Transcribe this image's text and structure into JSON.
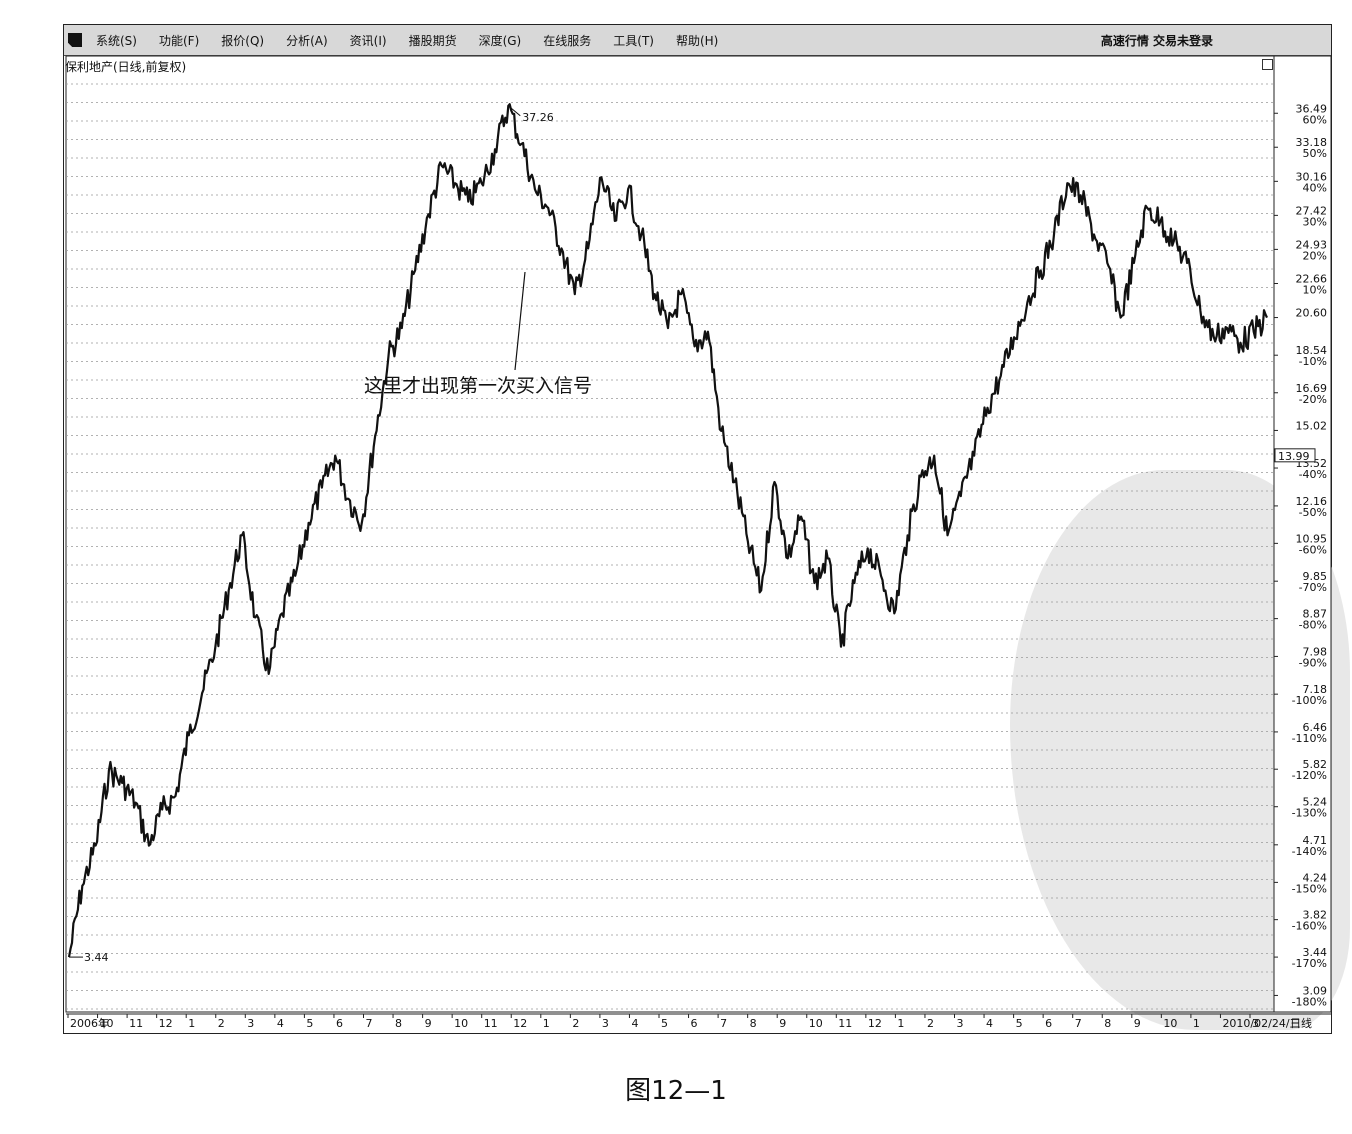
{
  "menu": {
    "items": [
      "系统(S)",
      "功能(F)",
      "报价(Q)",
      "分析(A)",
      "资讯(I)",
      "播股期货",
      "深度(G)",
      "在线服务",
      "工具(T)",
      "帮助(H)"
    ],
    "right_text": "高速行情 交易未登录"
  },
  "stock_title": "保利地产(日线,前复权)",
  "caption": "图12—1",
  "chart_data": {
    "type": "line",
    "title": "保利地产(日线,前复权)",
    "price_axis": {
      "scale": "log",
      "range": [
        2.95,
        40.5
      ],
      "labels": [
        {
          "price": 36.49,
          "pct": "60%"
        },
        {
          "price": 33.18,
          "pct": "50%"
        },
        {
          "price": 30.16,
          "pct": "40%"
        },
        {
          "price": 27.42,
          "pct": "30%"
        },
        {
          "price": 24.93,
          "pct": "20%"
        },
        {
          "price": 22.66,
          "pct": "10%"
        },
        {
          "price": 20.6,
          "pct": ""
        },
        {
          "price": 18.54,
          "pct": "-10%"
        },
        {
          "price": 16.69,
          "pct": "-20%"
        },
        {
          "price": 15.02,
          "pct": ""
        },
        {
          "price": 13.52,
          "pct": "-40%"
        },
        {
          "price": 12.16,
          "pct": "-50%"
        },
        {
          "price": 10.95,
          "pct": "-60%"
        },
        {
          "price": 9.85,
          "pct": "-70%"
        },
        {
          "price": 8.87,
          "pct": "-80%"
        },
        {
          "price": 7.98,
          "pct": "-90%"
        },
        {
          "price": 7.18,
          "pct": "-100%"
        },
        {
          "price": 6.46,
          "pct": "-110%"
        },
        {
          "price": 5.82,
          "pct": "-120%"
        },
        {
          "price": 5.24,
          "pct": "-130%"
        },
        {
          "price": 4.71,
          "pct": "-140%"
        },
        {
          "price": 4.24,
          "pct": "-150%"
        },
        {
          "price": 3.82,
          "pct": "-160%"
        },
        {
          "price": 3.44,
          "pct": "-170%"
        },
        {
          "price": 3.09,
          "pct": "-180%"
        }
      ],
      "current_price": "13.99"
    },
    "time_axis": {
      "labels": [
        "2006年",
        "10",
        "11",
        "12",
        "1",
        "2",
        "3",
        "4",
        "5",
        "6",
        "7",
        "8",
        "9",
        "10",
        "11",
        "12",
        "1",
        "2",
        "3",
        "4",
        "5",
        "6",
        "7",
        "8",
        "9",
        "10",
        "11",
        "12",
        "1",
        "2",
        "3",
        "4",
        "5",
        "6",
        "7",
        "8",
        "9",
        "10",
        "1",
        "2010/02/24/三",
        "3"
      ],
      "period_label": "日线"
    },
    "series": [
      {
        "values": [
          3.44,
          4.2,
          4.7,
          5.8,
          5.6,
          5.3,
          4.7,
          5.2,
          5.4,
          6.4,
          7.2,
          8.2,
          9.6,
          11.2,
          8.9,
          7.6,
          9.0,
          10.0,
          11.6,
          12.8,
          14.0,
          12.4,
          11.6,
          14.8,
          18.5,
          20.0,
          23.5,
          27.5,
          31.5,
          30.0,
          28.5,
          30.0,
          33.0,
          37.26,
          33.5,
          29.5,
          28.0,
          25.0,
          22.0,
          25.0,
          30.5,
          27.0,
          29.5,
          26.0,
          22.0,
          20.0,
          22.0,
          19.0,
          19.8,
          15.0,
          13.0,
          11.0,
          9.6,
          13.0,
          10.5,
          11.8,
          9.8,
          10.5,
          8.2,
          9.8,
          10.8,
          10.0,
          9.0,
          11.2,
          13.2,
          14.0,
          11.2,
          12.5,
          14.0,
          16.0,
          17.5,
          19.5,
          21.5,
          23.5,
          26.0,
          30.0,
          29.0,
          26.0,
          24.0,
          20.6,
          24.0,
          28.0,
          27.0,
          25.5,
          24.0,
          21.0,
          19.5,
          20.0,
          19.2,
          19.8,
          20.6
        ]
      }
    ],
    "annotations": {
      "high_label": "37.26",
      "low_label": "3.44",
      "buy_signal_text": "这里才出现第一次买入信号"
    }
  }
}
